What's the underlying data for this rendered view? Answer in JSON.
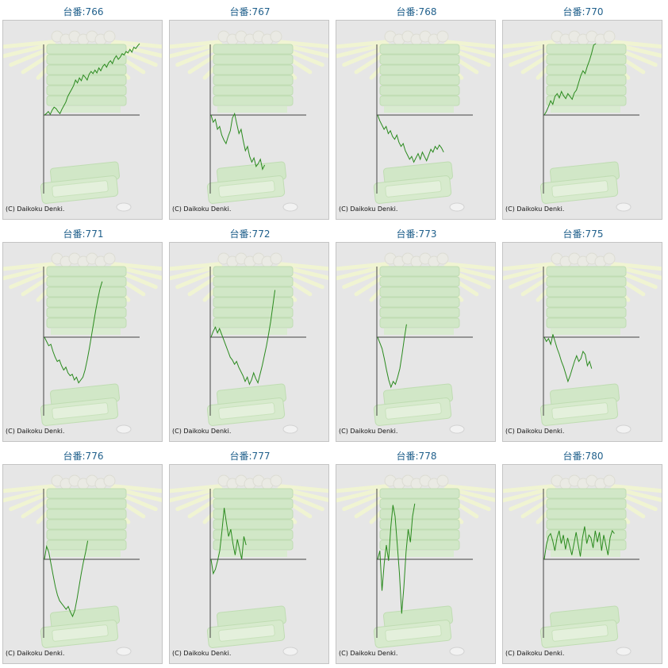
{
  "page": {
    "colors": {
      "line": "#2a8a1e",
      "axis": "#444444",
      "title": "#1f5f8b",
      "panel_bg": "#e6e6e6",
      "watermark": "#cfe8c4",
      "rays": "#f2f6d0"
    }
  },
  "chart_data": [
    {
      "type": "line",
      "title": "台番:766",
      "copyright": "(C) Daikoku Denki.",
      "y": [
        0,
        0.02,
        0.05,
        0.01,
        0.07,
        0.11,
        0.09,
        0.05,
        0.02,
        0.08,
        0.13,
        0.18,
        0.26,
        0.31,
        0.36,
        0.41,
        0.49,
        0.45,
        0.52,
        0.48,
        0.56,
        0.53,
        0.49,
        0.57,
        0.61,
        0.58,
        0.63,
        0.59,
        0.66,
        0.62,
        0.68,
        0.71,
        0.67,
        0.73,
        0.76,
        0.72,
        0.79,
        0.83,
        0.78,
        0.81,
        0.86,
        0.84,
        0.89,
        0.87,
        0.92,
        0.88,
        0.95,
        0.93,
        0.97,
        1.0
      ]
    },
    {
      "type": "line",
      "title": "台番:767",
      "copyright": "(C) Daikoku Denki.",
      "y": [
        0,
        -0.1,
        -0.06,
        -0.2,
        -0.16,
        -0.28,
        -0.35,
        -0.4,
        -0.3,
        -0.22,
        -0.04,
        0.02,
        -0.12,
        -0.26,
        -0.2,
        -0.36,
        -0.5,
        -0.44,
        -0.58,
        -0.66,
        -0.6,
        -0.72,
        -0.68,
        -0.62,
        -0.76,
        -0.7
      ]
    },
    {
      "type": "line",
      "title": "台番:768",
      "copyright": "(C) Daikoku Denki.",
      "y": [
        0,
        -0.08,
        -0.14,
        -0.2,
        -0.16,
        -0.26,
        -0.22,
        -0.3,
        -0.34,
        -0.28,
        -0.38,
        -0.44,
        -0.4,
        -0.5,
        -0.56,
        -0.62,
        -0.58,
        -0.66,
        -0.6,
        -0.54,
        -0.62,
        -0.52,
        -0.58,
        -0.64,
        -0.56,
        -0.48,
        -0.52,
        -0.44,
        -0.48,
        -0.42,
        -0.46,
        -0.52
      ]
    },
    {
      "type": "line",
      "title": "台番:770",
      "copyright": "(C) Daikoku Denki.",
      "y": [
        0,
        0.05,
        0.12,
        0.2,
        0.15,
        0.26,
        0.3,
        0.24,
        0.33,
        0.27,
        0.23,
        0.3,
        0.26,
        0.22,
        0.31,
        0.35,
        0.45,
        0.55,
        0.62,
        0.58,
        0.68,
        0.76,
        0.86,
        0.98,
        1.0
      ]
    },
    {
      "type": "line",
      "title": "台番:771",
      "copyright": "(C) Daikoku Denki.",
      "y": [
        0,
        -0.06,
        -0.12,
        -0.1,
        -0.2,
        -0.28,
        -0.34,
        -0.32,
        -0.4,
        -0.46,
        -0.42,
        -0.5,
        -0.54,
        -0.52,
        -0.6,
        -0.56,
        -0.64,
        -0.6,
        -0.56,
        -0.46,
        -0.32,
        -0.16,
        0.02,
        0.2,
        0.38,
        0.54,
        0.68,
        0.78
      ]
    },
    {
      "type": "line",
      "title": "台番:772",
      "copyright": "(C) Daikoku Denki.",
      "y": [
        0,
        0.08,
        0.14,
        0.06,
        0.12,
        0.04,
        -0.04,
        -0.12,
        -0.2,
        -0.28,
        -0.32,
        -0.38,
        -0.34,
        -0.42,
        -0.48,
        -0.54,
        -0.62,
        -0.56,
        -0.66,
        -0.6,
        -0.5,
        -0.58,
        -0.64,
        -0.52,
        -0.4,
        -0.26,
        -0.12,
        0.04,
        0.22,
        0.44,
        0.66
      ]
    },
    {
      "type": "line",
      "title": "台番:773",
      "copyright": "(C) Daikoku Denki.",
      "y": [
        0,
        -0.08,
        -0.16,
        -0.3,
        -0.46,
        -0.6,
        -0.7,
        -0.62,
        -0.66,
        -0.56,
        -0.44,
        -0.24,
        -0.02,
        0.18
      ]
    },
    {
      "type": "line",
      "title": "台番:775",
      "copyright": "(C) Daikoku Denki.",
      "y": [
        0,
        -0.06,
        -0.02,
        -0.1,
        0.04,
        -0.06,
        -0.16,
        -0.24,
        -0.34,
        -0.42,
        -0.52,
        -0.62,
        -0.54,
        -0.44,
        -0.34,
        -0.26,
        -0.34,
        -0.3,
        -0.2,
        -0.24,
        -0.4,
        -0.34,
        -0.44
      ]
    },
    {
      "type": "line",
      "title": "台番:776",
      "copyright": "(C) Daikoku Denki.",
      "y": [
        0,
        0.18,
        0.1,
        -0.06,
        -0.22,
        -0.38,
        -0.5,
        -0.58,
        -0.62,
        -0.66,
        -0.7,
        -0.66,
        -0.74,
        -0.8,
        -0.72,
        -0.56,
        -0.38,
        -0.2,
        -0.04,
        0.1,
        0.26
      ]
    },
    {
      "type": "line",
      "title": "台番:777",
      "copyright": "(C) Daikoku Denki.",
      "y": [
        0,
        -0.2,
        -0.14,
        -0.02,
        0.12,
        0.4,
        0.72,
        0.52,
        0.32,
        0.42,
        0.22,
        0.06,
        0.28,
        0.14,
        0,
        0.32,
        0.2
      ]
    },
    {
      "type": "line",
      "title": "台番:778",
      "copyright": "(C) Daikoku Denki.",
      "y": [
        0,
        0.12,
        -0.44,
        -0.06,
        0.2,
        -0.02,
        0.44,
        0.76,
        0.6,
        0.2,
        -0.2,
        -0.76,
        -0.4,
        0.1,
        0.42,
        0.24,
        0.6,
        0.78
      ]
    },
    {
      "type": "line",
      "title": "台番:780",
      "copyright": "(C) Daikoku Denki.",
      "y": [
        0,
        0.2,
        0.32,
        0.36,
        0.26,
        0.12,
        0.3,
        0.4,
        0.22,
        0.34,
        0.14,
        0.3,
        0.18,
        0.06,
        0.22,
        0.38,
        0.2,
        0.04,
        0.3,
        0.46,
        0.22,
        0.34,
        0.3,
        0.16,
        0.4,
        0.24,
        0.38,
        0.12,
        0.34,
        0.2,
        0.06,
        0.3,
        0.4,
        0.36
      ]
    }
  ]
}
